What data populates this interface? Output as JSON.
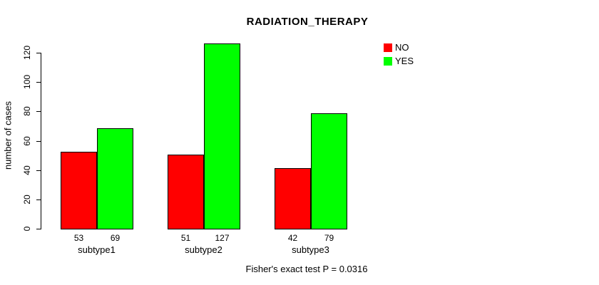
{
  "chart_data": {
    "type": "bar",
    "title": "RADIATION_THERAPY",
    "xlabel": "",
    "ylabel": "number of cases",
    "categories": [
      "subtype1",
      "subtype2",
      "subtype3"
    ],
    "series": [
      {
        "name": "NO",
        "color": "#FF0000",
        "values": [
          53,
          51,
          42
        ]
      },
      {
        "name": "YES",
        "color": "#00FF00",
        "values": [
          69,
          127,
          79
        ]
      }
    ],
    "bar_value_labels": [
      [
        "53",
        "69"
      ],
      [
        "51",
        "127"
      ],
      [
        "42",
        "79"
      ]
    ],
    "yticks": [
      0,
      20,
      40,
      60,
      80,
      100,
      120
    ],
    "ylim": [
      0,
      127
    ],
    "grid": false,
    "legend_position": "top-right",
    "footnote": "Fisher's exact test P = 0.0316",
    "bar_border_color": "#000000",
    "background_color": "#FFFFFF"
  }
}
